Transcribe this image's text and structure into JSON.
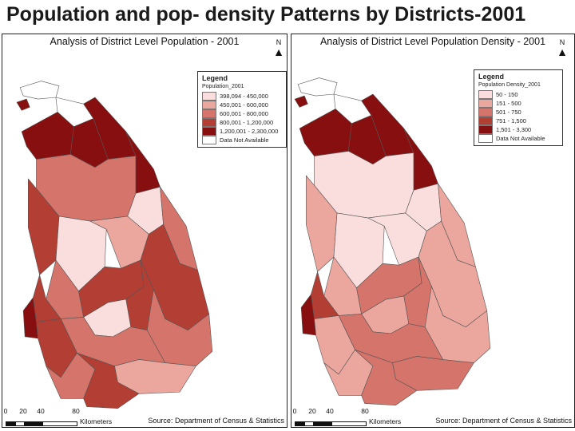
{
  "slide_title": "Population and pop- density Patterns by Districts-2001",
  "colors": {
    "class1": "#fadedd",
    "class2": "#eba69e",
    "class3": "#d4746a",
    "class4": "#b23e34",
    "class5": "#870f10",
    "no_data": "#ffffff",
    "outline": "#555555"
  },
  "maps": [
    {
      "title": "Analysis of District Level Population - 2001",
      "legend": {
        "title": "Legend",
        "subtitle": "Population_2001",
        "items": [
          "398,094 - 450,000",
          "450,001 - 600,000",
          "600,001 - 800,000",
          "800,001 - 1,200,000",
          "1,200,001 - 2,300,000",
          "Data Not Available"
        ]
      },
      "scale": {
        "ticks": [
          "0",
          "20",
          "40",
          "80"
        ],
        "unit": "Kilometers"
      },
      "source": "Source: Department of Census & Statistics",
      "north": "N",
      "district_classes": [
        0,
        5,
        0,
        5,
        5,
        5,
        5,
        3,
        1,
        3,
        4,
        1,
        2,
        4,
        3,
        4,
        4,
        3,
        1,
        4,
        3,
        4,
        5,
        2,
        3,
        4
      ]
    },
    {
      "title": "Analysis of District Level Population Density - 2001",
      "legend": {
        "title": "Legend",
        "subtitle": "Population Density_2001",
        "items": [
          "50 - 150",
          "151 - 500",
          "501 - 750",
          "751 - 1,500",
          "1,501 - 3,300",
          "Data Not Available"
        ]
      },
      "scale": {
        "ticks": [
          "0",
          "20",
          "40",
          "80"
        ],
        "unit": "Kilometers"
      },
      "source": "Source: Department of Census & Statistics",
      "north": "N",
      "district_classes": [
        0,
        5,
        0,
        5,
        5,
        5,
        5,
        1,
        1,
        2,
        2,
        1,
        1,
        2,
        2,
        3,
        3,
        2,
        2,
        4,
        3,
        2,
        5,
        3,
        2,
        3
      ]
    }
  ]
}
